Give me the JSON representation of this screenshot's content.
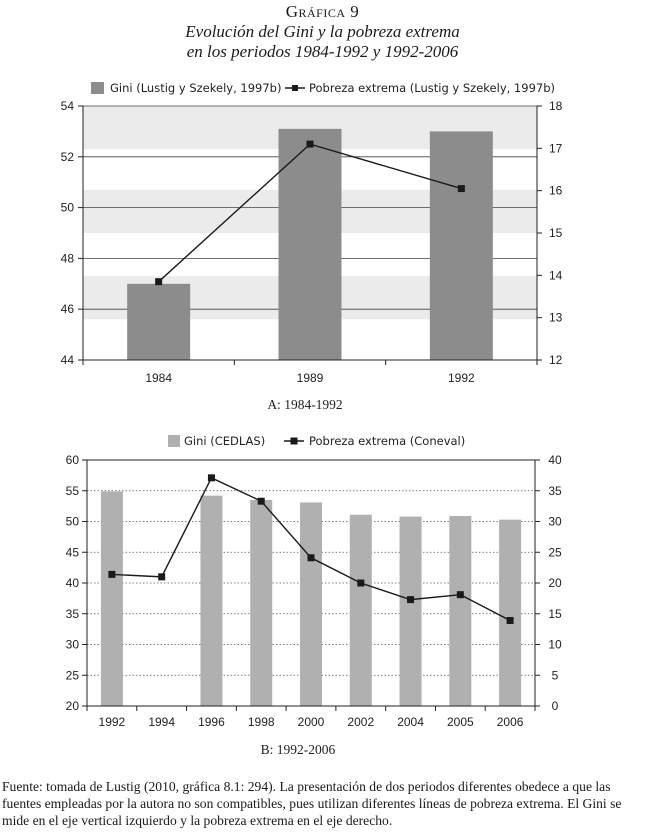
{
  "figure": {
    "label": "Gráfica 9",
    "title_line1": "Evolución del Gini y la pobreza extrema",
    "title_line2": "en los periodos 1984-1992 y 1992-2006"
  },
  "chart_data": [
    {
      "type": "bar",
      "caption": "A: 1984-1992",
      "categories": [
        "1984",
        "1989",
        "1992"
      ],
      "series": [
        {
          "name": "Gini (Lustig y Szekely, 1997b)",
          "axis": "left",
          "kind": "bar",
          "values": [
            47.0,
            53.1,
            53.0
          ],
          "color": "#8c8c8c"
        },
        {
          "name": "Pobreza extrema (Lustig y Szekely, 1997b)",
          "axis": "right",
          "kind": "line",
          "values": [
            13.85,
            17.1,
            16.05
          ],
          "color": "#1a1a1a"
        }
      ],
      "y_left": {
        "min": 44,
        "max": 54,
        "ticks": [
          44,
          46,
          48,
          50,
          52,
          54
        ]
      },
      "y_right": {
        "min": 12,
        "max": 18,
        "ticks": [
          12,
          13,
          14,
          15,
          16,
          17,
          18
        ]
      },
      "legend_position": "top",
      "grid": "horizontal bands"
    },
    {
      "type": "bar",
      "caption": "B: 1992-2006",
      "categories": [
        "1992",
        "1994",
        "1996",
        "1998",
        "2000",
        "2002",
        "2004",
        "2005",
        "2006"
      ],
      "series": [
        {
          "name": "Gini (CEDLAS)",
          "axis": "left",
          "kind": "bar",
          "values": [
            54.9,
            null,
            54.2,
            53.5,
            53.1,
            51.1,
            50.8,
            50.9,
            50.3
          ],
          "color": "#b0b0b0"
        },
        {
          "name": "Pobreza extrema (Coneval)",
          "axis": "right",
          "kind": "line",
          "values": [
            21.4,
            21.0,
            37.1,
            33.3,
            24.1,
            20.0,
            17.3,
            18.1,
            13.9
          ],
          "color": "#1a1a1a"
        }
      ],
      "y_left": {
        "min": 20,
        "max": 60,
        "ticks": [
          20,
          25,
          30,
          35,
          40,
          45,
          50,
          55,
          60
        ]
      },
      "y_right": {
        "min": 0,
        "max": 40,
        "ticks": [
          0,
          5,
          10,
          15,
          20,
          25,
          30,
          35,
          40
        ]
      },
      "legend_position": "top",
      "grid": "dotted horizontal"
    }
  ],
  "source_note": "Fuente: tomada de Lustig (2010, gráfica 8.1: 294). La presentación de dos periodos diferentes obedece a que las fuentes empleadas por la autora no son compatibles, pues utilizan diferentes líneas de pobreza extrema. El Gini se mide en el eje vertical izquierdo y la pobreza extrema en el eje derecho."
}
